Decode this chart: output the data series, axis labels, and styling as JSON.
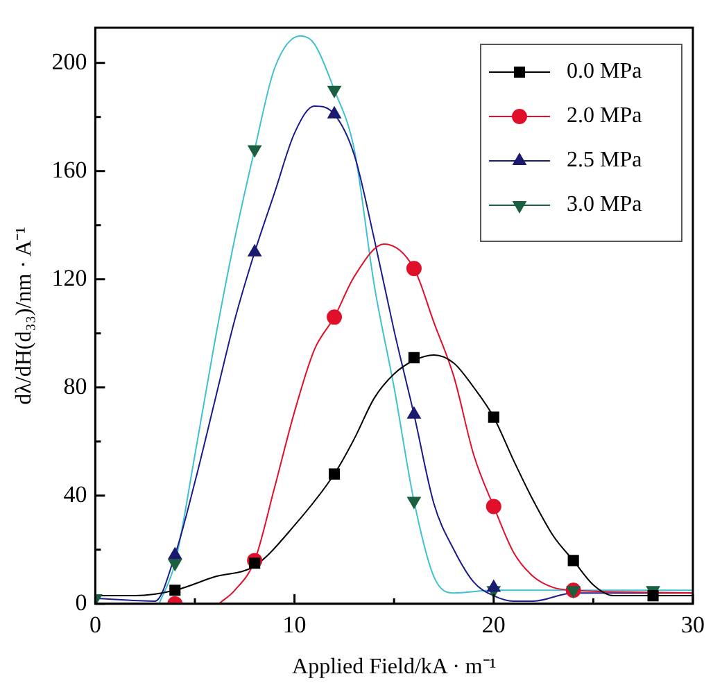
{
  "chart_data": {
    "type": "scatter",
    "xlabel": "Applied Field/kA · m⁻¹",
    "ylabel": "dλ/dH(d₃₃)/nm · A⁻¹",
    "xlim": [
      0,
      30
    ],
    "xticks": [
      0,
      {
        "value": 5,
        "label": null
      },
      10,
      {
        "value": 15,
        "label": null
      },
      20,
      {
        "value": 25,
        "label": null
      },
      30
    ],
    "ylim": [
      0,
      213
    ],
    "yticks": [
      0,
      {
        "value": 20,
        "label": null
      },
      40,
      {
        "value": 60,
        "label": null
      },
      80,
      {
        "value": 100,
        "label": null
      },
      120,
      {
        "value": 140,
        "label": null
      },
      160,
      {
        "value": 180,
        "label": null
      },
      200
    ],
    "grid": false,
    "legend": "top right",
    "series": [
      {
        "name": "0.0 MPa",
        "marker": "square",
        "color": "#000000",
        "x": [
          4,
          8,
          12,
          16,
          20,
          24,
          28
        ],
        "values": [
          5,
          15,
          48,
          91,
          69,
          16,
          3
        ]
      },
      {
        "name": "2.0 MPa",
        "marker": "circle",
        "color": "#e0102a",
        "x": [
          4,
          8,
          12,
          16,
          20,
          24
        ],
        "values": [
          0,
          16,
          106,
          124,
          36,
          5
        ]
      },
      {
        "name": "2.5 MPa",
        "marker": "triangle",
        "color": "#1a1a6e",
        "x": [
          4,
          8,
          12,
          16,
          20
        ],
        "values": [
          18,
          130,
          181,
          70,
          6
        ]
      },
      {
        "name": "3.0 MPa",
        "marker": "triangle-down",
        "color": "#1a6040",
        "x": [
          0,
          4,
          8,
          12,
          16,
          20,
          24,
          28
        ],
        "values": [
          2,
          15,
          168,
          190,
          38,
          5,
          5,
          5
        ]
      },
      {
        "type": "line",
        "marker": "none",
        "color": "#000000",
        "x": [
          0,
          2,
          4,
          6,
          8,
          10,
          12,
          13,
          14,
          15,
          16,
          17,
          18,
          19,
          20,
          21,
          22,
          23,
          24,
          25,
          26,
          28,
          30
        ],
        "values": [
          3,
          3,
          5,
          10,
          14,
          29,
          48,
          61,
          76,
          85,
          90,
          92,
          89,
          80,
          69,
          53,
          38,
          25,
          16,
          7,
          3,
          3,
          3
        ]
      },
      {
        "type": "line",
        "marker": "none",
        "color": "#e0102a",
        "x": [
          6.2,
          7,
          8,
          9,
          10,
          11,
          12,
          13,
          14.5,
          16,
          17,
          18,
          19,
          20,
          21,
          22,
          23,
          24,
          30
        ],
        "values": [
          0,
          5,
          16,
          43,
          71,
          94,
          106,
          121,
          133,
          124,
          104,
          84,
          55,
          36,
          19,
          10,
          6,
          5,
          4
        ]
      },
      {
        "type": "line",
        "marker": "none",
        "color": "#1a1a8a",
        "x": [
          0,
          3,
          4,
          5,
          6,
          7,
          8,
          9,
          10,
          11,
          12,
          13,
          14,
          15,
          16,
          17,
          18,
          19,
          20,
          21,
          22,
          24,
          30
        ],
        "values": [
          2,
          1,
          18,
          45,
          75,
          105,
          130,
          152,
          174,
          184,
          181,
          166,
          135,
          101,
          70,
          37,
          20,
          8,
          3,
          1,
          1,
          4,
          4
        ]
      },
      {
        "type": "line",
        "marker": "none",
        "color": "#40c0d0",
        "x": [
          3.2,
          4,
          5,
          6,
          7,
          8,
          9,
          10.3,
          11,
          12,
          13,
          14,
          15,
          16,
          17,
          18,
          20,
          30
        ],
        "values": [
          0,
          15,
          55,
          97,
          135,
          168,
          198,
          210,
          207,
          190,
          168,
          118,
          80,
          38,
          10,
          4,
          5,
          5
        ]
      }
    ]
  }
}
